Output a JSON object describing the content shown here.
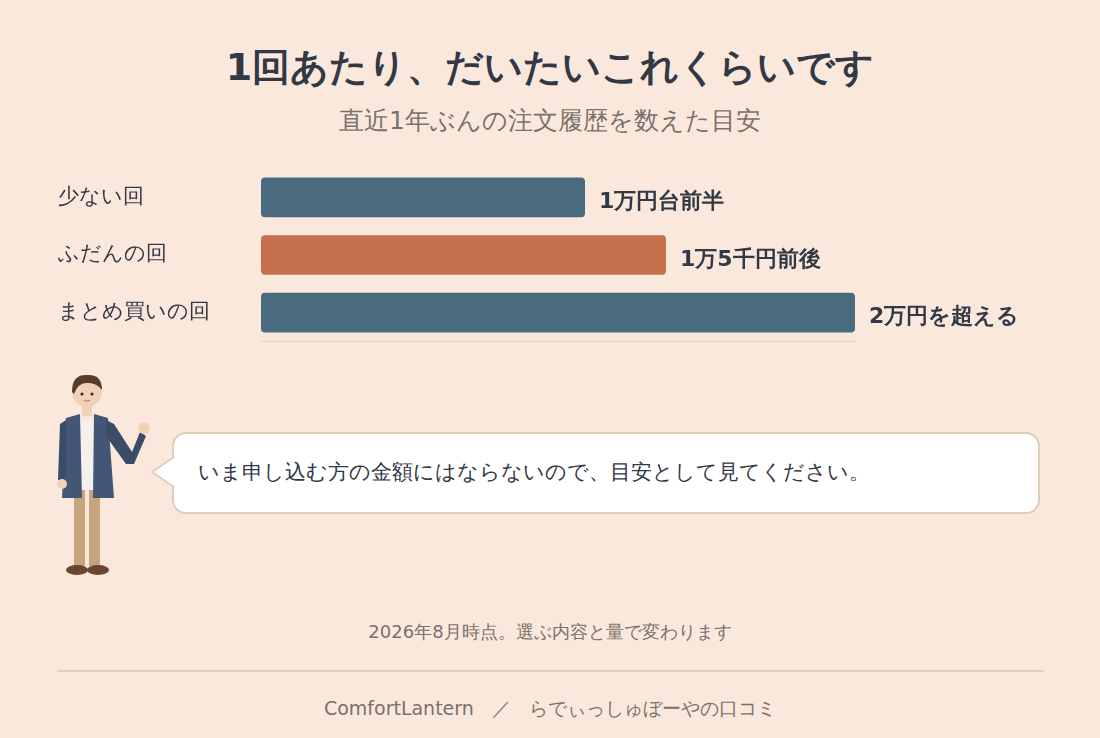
{
  "chart_data": {
    "type": "bar",
    "orientation": "horizontal",
    "title": "1回あたり、だいたいこれくらいです",
    "subtitle": "直近1年ぶんの注文履歴を数えた目安",
    "categories": [
      "少ない回",
      "ふだんの回",
      "まとめ買いの回"
    ],
    "values": [
      12000,
      15000,
      22000
    ],
    "value_labels": [
      "1万円台前半",
      "1万5千円前後",
      "2万円を超える"
    ],
    "colors": [
      "#4a6a80",
      "#c4704a",
      "#4a6a80"
    ],
    "xlim": [
      0,
      22000
    ],
    "grid": false,
    "data_labels": true,
    "tick_labels": "y"
  },
  "speech_bubble": "いま申し込む方の金額にはならないので、目安として見てください。",
  "footnote": "2026年8月時点。選ぶ内容と量で変わります",
  "footer": {
    "brand": "ComfortLantern",
    "separator": "／",
    "source": "らでぃっしゅぼーやの口コミ"
  }
}
